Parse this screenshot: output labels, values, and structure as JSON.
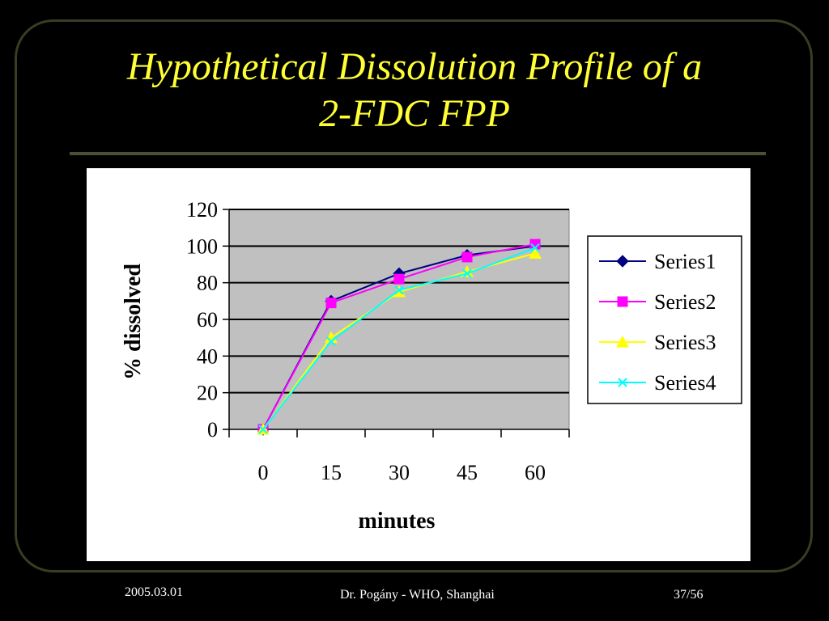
{
  "slide": {
    "title_line1": "Hypothetical Dissolution Profile of a",
    "title_line2": "2-FDC FPP",
    "footer_date": "2005.03.01",
    "footer_author": "Dr. Pogány - WHO, Shanghai",
    "footer_page": "37/56",
    "colors": {
      "background": "#000000",
      "title": "#ffff33",
      "footer": "#ffffff"
    }
  },
  "chart_data": {
    "type": "line",
    "title": "",
    "xlabel": "minutes",
    "ylabel": "% dissolved",
    "categories": [
      "0",
      "15",
      "30",
      "45",
      "60"
    ],
    "ylim": [
      0,
      120
    ],
    "yticks": [
      "0",
      "20",
      "40",
      "60",
      "80",
      "100",
      "120"
    ],
    "grid": true,
    "legend_position": "right",
    "plot_background": "#c0c0c0",
    "series": [
      {
        "name": "Series1",
        "values": [
          0,
          70,
          85,
          95,
          100
        ],
        "color": "#000080",
        "marker": "diamond"
      },
      {
        "name": "Series2",
        "values": [
          0,
          69,
          82,
          94,
          101
        ],
        "color": "#ff00ff",
        "marker": "square"
      },
      {
        "name": "Series3",
        "values": [
          0,
          50,
          75,
          86,
          96
        ],
        "color": "#ffff00",
        "marker": "triangle"
      },
      {
        "name": "Series4",
        "values": [
          0,
          48,
          76,
          85,
          99
        ],
        "color": "#00ffff",
        "marker": "x"
      }
    ]
  }
}
